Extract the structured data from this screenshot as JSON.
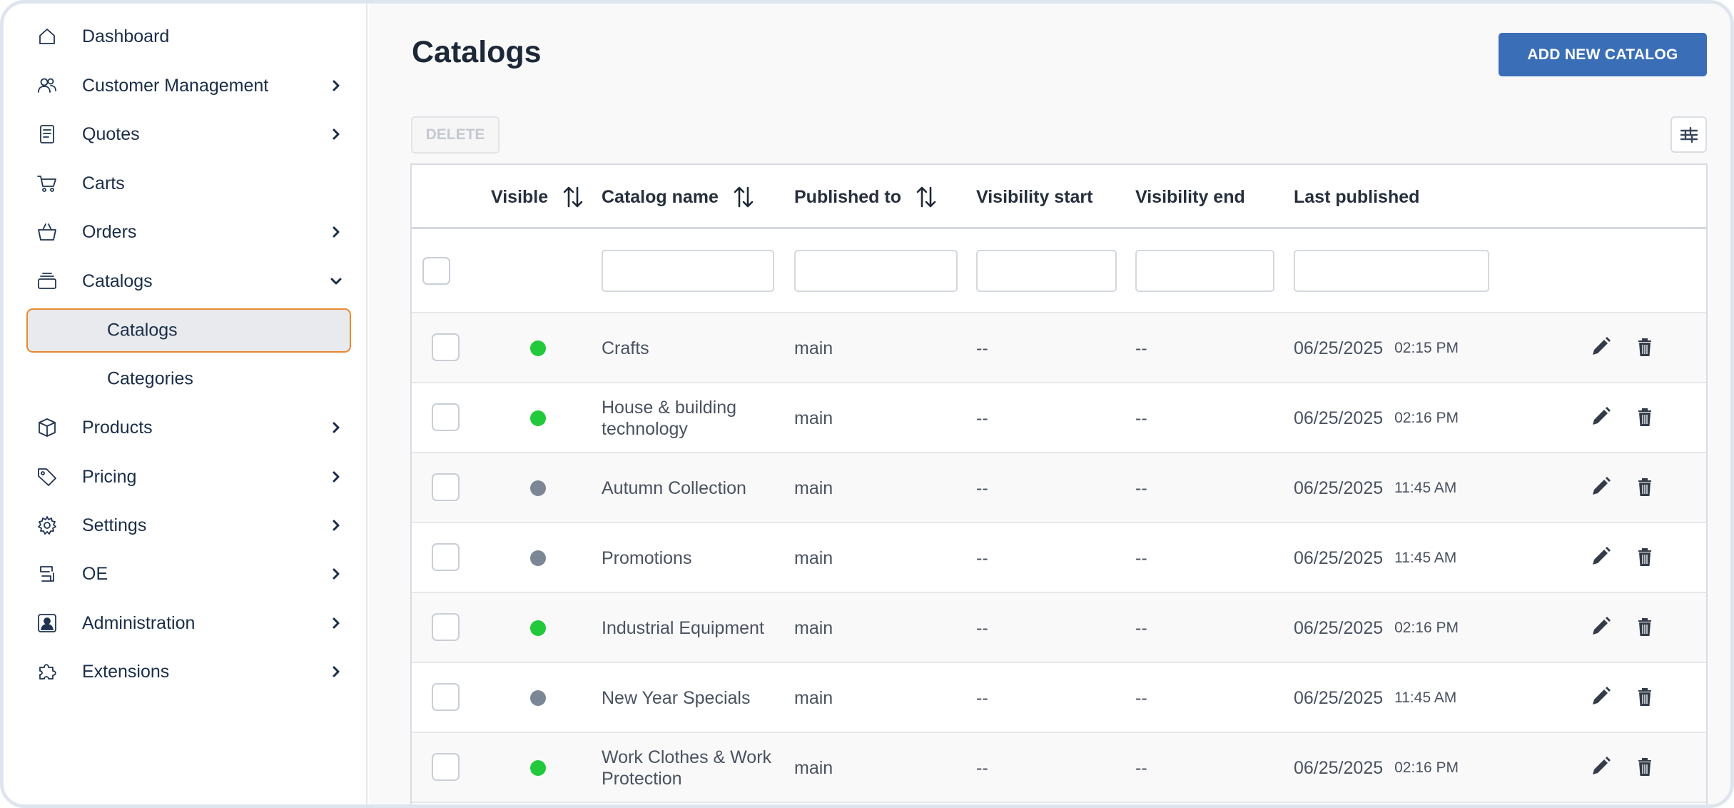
{
  "sidebar": {
    "items": [
      {
        "label": "Dashboard",
        "icon": "home-icon",
        "chevron": false
      },
      {
        "label": "Customer Management",
        "icon": "users-icon",
        "chevron": "right"
      },
      {
        "label": "Quotes",
        "icon": "document-icon",
        "chevron": "right"
      },
      {
        "label": "Carts",
        "icon": "cart-icon",
        "chevron": false
      },
      {
        "label": "Orders",
        "icon": "basket-icon",
        "chevron": "right"
      },
      {
        "label": "Catalogs",
        "icon": "stack-icon",
        "chevron": "down"
      },
      {
        "label": "Products",
        "icon": "box-icon",
        "chevron": "right"
      },
      {
        "label": "Pricing",
        "icon": "tag-icon",
        "chevron": "right"
      },
      {
        "label": "Settings",
        "icon": "gear-icon",
        "chevron": "right"
      },
      {
        "label": "OE",
        "icon": "oe-icon",
        "chevron": "right"
      },
      {
        "label": "Administration",
        "icon": "admin-icon",
        "chevron": "right"
      },
      {
        "label": "Extensions",
        "icon": "puzzle-icon",
        "chevron": "right"
      }
    ],
    "subitems": [
      {
        "label": "Catalogs",
        "active": true
      },
      {
        "label": "Categories",
        "active": false
      }
    ]
  },
  "header": {
    "title": "Catalogs",
    "add_button": "ADD NEW CATALOG",
    "delete_button": "DELETE"
  },
  "table": {
    "columns": {
      "visible": "Visible",
      "name": "Catalog name",
      "published_to": "Published to",
      "visibility_start": "Visibility start",
      "visibility_end": "Visibility end",
      "last_published": "Last published"
    },
    "rows": [
      {
        "visible": true,
        "name": "Crafts",
        "published_to": "main",
        "visibility_start": "--",
        "visibility_end": "--",
        "date": "06/25/2025",
        "time": "02:15 PM"
      },
      {
        "visible": true,
        "name": "House & building technology",
        "published_to": "main",
        "visibility_start": "--",
        "visibility_end": "--",
        "date": "06/25/2025",
        "time": "02:16 PM"
      },
      {
        "visible": false,
        "name": "Autumn Collection",
        "published_to": "main",
        "visibility_start": "--",
        "visibility_end": "--",
        "date": "06/25/2025",
        "time": "11:45 AM"
      },
      {
        "visible": false,
        "name": "Promotions",
        "published_to": "main",
        "visibility_start": "--",
        "visibility_end": "--",
        "date": "06/25/2025",
        "time": "11:45 AM"
      },
      {
        "visible": true,
        "name": "Industrial Equipment",
        "published_to": "main",
        "visibility_start": "--",
        "visibility_end": "--",
        "date": "06/25/2025",
        "time": "02:16 PM"
      },
      {
        "visible": false,
        "name": "New Year Specials",
        "published_to": "main",
        "visibility_start": "--",
        "visibility_end": "--",
        "date": "06/25/2025",
        "time": "11:45 AM"
      },
      {
        "visible": true,
        "name": "Work Clothes & Work Protection",
        "published_to": "main",
        "visibility_start": "--",
        "visibility_end": "--",
        "date": "06/25/2025",
        "time": "02:16 PM"
      }
    ]
  },
  "colors": {
    "accent": "#3a6fb8",
    "active_outline": "#e8892f",
    "visible_dot": "#22c93a",
    "hidden_dot": "#7c8796"
  }
}
